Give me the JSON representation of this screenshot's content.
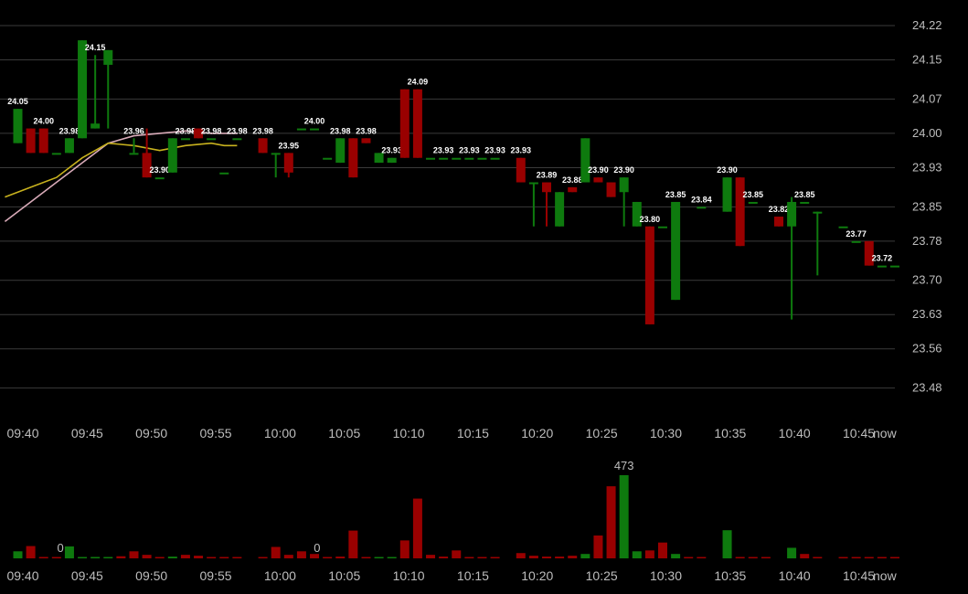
{
  "colors": {
    "background": "#000000",
    "grid": "#3a3a3a",
    "up": "#0e7a0e",
    "down": "#990000",
    "text": "#bdbdbd",
    "label": "#ffffff",
    "ma_fast": "#c8b21e",
    "ma_slow": "#d8aab8"
  },
  "chart_data": [
    {
      "type": "candlestick",
      "y_ticks": [
        "24.22",
        "24.15",
        "24.07",
        "24.00",
        "23.93",
        "23.85",
        "23.78",
        "23.70",
        "23.63",
        "23.56",
        "23.48"
      ],
      "ylim": [
        23.455,
        24.235
      ],
      "x_ticks": [
        "09:40",
        "09:45",
        "09:50",
        "09:55",
        "10:00",
        "10:05",
        "10:10",
        "10:15",
        "10:20",
        "10:25",
        "10:30",
        "10:35",
        "10:40",
        "10:45",
        "now"
      ],
      "grid": "horizontal",
      "candles": [
        {
          "t": 0,
          "o": 23.98,
          "h": 24.05,
          "l": 23.98,
          "c": 24.05,
          "label": "24.05"
        },
        {
          "t": 1,
          "o": 24.01,
          "h": 24.01,
          "l": 23.96,
          "c": 23.96
        },
        {
          "t": 2,
          "o": 24.01,
          "h": 24.01,
          "l": 23.96,
          "c": 23.96,
          "label": "24.00"
        },
        {
          "t": 3,
          "o": 23.96,
          "h": 23.96,
          "l": 23.96,
          "c": 23.96
        },
        {
          "t": 4,
          "o": 23.96,
          "h": 23.99,
          "l": 23.96,
          "c": 23.99,
          "label": "23.98"
        },
        {
          "t": 5,
          "o": 23.99,
          "h": 24.19,
          "l": 23.99,
          "c": 24.19
        },
        {
          "t": 6,
          "o": 24.01,
          "h": 24.16,
          "l": 24.01,
          "c": 24.02,
          "label": "24.15"
        },
        {
          "t": 7,
          "o": 24.14,
          "h": 24.17,
          "l": 24.01,
          "c": 24.17
        },
        {
          "t": 9,
          "o": 23.96,
          "h": 23.99,
          "l": 23.96,
          "c": 23.96,
          "label": "23.96"
        },
        {
          "t": 10,
          "o": 23.96,
          "h": 24.01,
          "l": 23.91,
          "c": 23.91
        },
        {
          "t": 11,
          "o": 23.91,
          "h": 23.91,
          "l": 23.91,
          "c": 23.91,
          "label": "23.90"
        },
        {
          "t": 12,
          "o": 23.92,
          "h": 23.99,
          "l": 23.92,
          "c": 23.99
        },
        {
          "t": 13,
          "o": 23.99,
          "h": 23.99,
          "l": 23.99,
          "c": 23.99,
          "label": "23.98"
        },
        {
          "t": 14,
          "o": 24.01,
          "h": 24.01,
          "l": 23.99,
          "c": 23.99
        },
        {
          "t": 15,
          "o": 23.99,
          "h": 23.99,
          "l": 23.99,
          "c": 23.99,
          "label": "23.98"
        },
        {
          "t": 16,
          "o": 23.92,
          "h": 23.92,
          "l": 23.92,
          "c": 23.92
        },
        {
          "t": 17,
          "o": 23.99,
          "h": 23.99,
          "l": 23.99,
          "c": 23.99,
          "label": "23.98"
        },
        {
          "t": 19,
          "o": 23.99,
          "h": 23.99,
          "l": 23.96,
          "c": 23.96,
          "label": "23.98"
        },
        {
          "t": 20,
          "o": 23.96,
          "h": 23.96,
          "l": 23.91,
          "c": 23.96
        },
        {
          "t": 21,
          "o": 23.96,
          "h": 23.96,
          "l": 23.91,
          "c": 23.92,
          "label": "23.95"
        },
        {
          "t": 22,
          "o": 24.01,
          "h": 24.01,
          "l": 24.01,
          "c": 24.01
        },
        {
          "t": 23,
          "o": 24.01,
          "h": 24.01,
          "l": 24.01,
          "c": 24.01,
          "label": "24.00"
        },
        {
          "t": 24,
          "o": 23.95,
          "h": 23.95,
          "l": 23.95,
          "c": 23.95
        },
        {
          "t": 25,
          "o": 23.94,
          "h": 23.99,
          "l": 23.94,
          "c": 23.99,
          "label": "23.98"
        },
        {
          "t": 26,
          "o": 23.99,
          "h": 23.99,
          "l": 23.91,
          "c": 23.91
        },
        {
          "t": 27,
          "o": 23.99,
          "h": 23.99,
          "l": 23.98,
          "c": 23.98,
          "label": "23.98"
        },
        {
          "t": 28,
          "o": 23.94,
          "h": 23.96,
          "l": 23.94,
          "c": 23.96
        },
        {
          "t": 29,
          "o": 23.94,
          "h": 23.95,
          "l": 23.94,
          "c": 23.95,
          "label": "23.93"
        },
        {
          "t": 30,
          "o": 24.09,
          "h": 24.09,
          "l": 23.95,
          "c": 23.95
        },
        {
          "t": 31,
          "o": 24.09,
          "h": 24.09,
          "l": 23.95,
          "c": 23.95,
          "label": "24.09"
        },
        {
          "t": 32,
          "o": 23.95,
          "h": 23.95,
          "l": 23.95,
          "c": 23.95
        },
        {
          "t": 33,
          "o": 23.95,
          "h": 23.95,
          "l": 23.95,
          "c": 23.95,
          "label": "23.93"
        },
        {
          "t": 34,
          "o": 23.95,
          "h": 23.95,
          "l": 23.95,
          "c": 23.95
        },
        {
          "t": 35,
          "o": 23.95,
          "h": 23.95,
          "l": 23.95,
          "c": 23.95,
          "label": "23.93"
        },
        {
          "t": 36,
          "o": 23.95,
          "h": 23.95,
          "l": 23.95,
          "c": 23.95
        },
        {
          "t": 37,
          "o": 23.95,
          "h": 23.95,
          "l": 23.95,
          "c": 23.95,
          "label": "23.93"
        },
        {
          "t": 39,
          "o": 23.95,
          "h": 23.95,
          "l": 23.9,
          "c": 23.9,
          "label": "23.93"
        },
        {
          "t": 40,
          "o": 23.9,
          "h": 23.9,
          "l": 23.81,
          "c": 23.9
        },
        {
          "t": 41,
          "o": 23.9,
          "h": 23.9,
          "l": 23.81,
          "c": 23.88,
          "label": "23.89"
        },
        {
          "t": 42,
          "o": 23.81,
          "h": 23.88,
          "l": 23.81,
          "c": 23.88
        },
        {
          "t": 43,
          "o": 23.89,
          "h": 23.89,
          "l": 23.88,
          "c": 23.88,
          "label": "23.88"
        },
        {
          "t": 44,
          "o": 23.9,
          "h": 23.99,
          "l": 23.9,
          "c": 23.99
        },
        {
          "t": 45,
          "o": 23.91,
          "h": 23.91,
          "l": 23.9,
          "c": 23.9,
          "label": "23.90"
        },
        {
          "t": 46,
          "o": 23.9,
          "h": 23.9,
          "l": 23.87,
          "c": 23.87
        },
        {
          "t": 47,
          "o": 23.88,
          "h": 23.91,
          "l": 23.81,
          "c": 23.91,
          "label": "23.90"
        },
        {
          "t": 48,
          "o": 23.81,
          "h": 23.86,
          "l": 23.81,
          "c": 23.86
        },
        {
          "t": 49,
          "o": 23.81,
          "h": 23.81,
          "l": 23.61,
          "c": 23.61,
          "label": "23.80"
        },
        {
          "t": 50,
          "o": 23.81,
          "h": 23.81,
          "l": 23.81,
          "c": 23.81
        },
        {
          "t": 51,
          "o": 23.66,
          "h": 23.86,
          "l": 23.66,
          "c": 23.86,
          "label": "23.85"
        },
        {
          "t": 53,
          "o": 23.85,
          "h": 23.85,
          "l": 23.85,
          "c": 23.85,
          "label": "23.84"
        },
        {
          "t": 55,
          "o": 23.84,
          "h": 23.91,
          "l": 23.84,
          "c": 23.91,
          "label": "23.90"
        },
        {
          "t": 56,
          "o": 23.91,
          "h": 23.91,
          "l": 23.77,
          "c": 23.77
        },
        {
          "t": 57,
          "o": 23.86,
          "h": 23.86,
          "l": 23.86,
          "c": 23.86,
          "label": "23.85"
        },
        {
          "t": 59,
          "o": 23.83,
          "h": 23.83,
          "l": 23.81,
          "c": 23.81,
          "label": "23.82"
        },
        {
          "t": 60,
          "o": 23.81,
          "h": 23.87,
          "l": 23.62,
          "c": 23.86
        },
        {
          "t": 61,
          "o": 23.86,
          "h": 23.86,
          "l": 23.86,
          "c": 23.86,
          "label": "23.85"
        },
        {
          "t": 62,
          "o": 23.84,
          "h": 23.84,
          "l": 23.71,
          "c": 23.84
        },
        {
          "t": 64,
          "o": 23.81,
          "h": 23.81,
          "l": 23.81,
          "c": 23.81
        },
        {
          "t": 65,
          "o": 23.78,
          "h": 23.78,
          "l": 23.78,
          "c": 23.78,
          "label": "23.77"
        },
        {
          "t": 66,
          "o": 23.78,
          "h": 23.78,
          "l": 23.73,
          "c": 23.73
        },
        {
          "t": 67,
          "o": 23.73,
          "h": 23.73,
          "l": 23.73,
          "c": 23.73,
          "label": "23.72"
        },
        {
          "t": 68,
          "o": 23.73,
          "h": 23.73,
          "l": 23.73,
          "c": 23.73
        }
      ],
      "ma_fast": [
        [
          -1,
          23.87
        ],
        [
          1,
          23.89
        ],
        [
          3,
          23.91
        ],
        [
          5,
          23.95
        ],
        [
          7,
          23.98
        ],
        [
          9,
          23.975
        ],
        [
          11,
          23.965
        ],
        [
          13,
          23.975
        ],
        [
          15,
          23.98
        ],
        [
          16,
          23.975
        ],
        [
          17,
          23.975
        ]
      ],
      "ma_slow": [
        [
          -1,
          23.82
        ],
        [
          1,
          23.86
        ],
        [
          3,
          23.9
        ],
        [
          5,
          23.94
        ],
        [
          7,
          23.98
        ],
        [
          9,
          23.995
        ],
        [
          11,
          24.0
        ],
        [
          13,
          24.005
        ],
        [
          15,
          24.0
        ],
        [
          17,
          24.0
        ]
      ]
    },
    {
      "type": "bar",
      "x_ticks": [
        "09:40",
        "09:45",
        "09:50",
        "09:55",
        "10:00",
        "10:05",
        "10:10",
        "10:15",
        "10:20",
        "10:25",
        "10:30",
        "10:35",
        "10:40",
        "10:45",
        "now"
      ],
      "ylim": [
        0,
        473
      ],
      "annotations": [
        {
          "t": 3.3,
          "v": 0,
          "label": "0"
        },
        {
          "t": 23.2,
          "v": 0,
          "label": "0"
        },
        {
          "t": 47,
          "v": 473,
          "label": "473"
        }
      ],
      "bars": [
        {
          "t": 0,
          "v": 40,
          "dir": "up"
        },
        {
          "t": 1,
          "v": 70,
          "dir": "down"
        },
        {
          "t": 2,
          "v": 8,
          "dir": "down"
        },
        {
          "t": 3,
          "v": 3,
          "dir": "down"
        },
        {
          "t": 4,
          "v": 68,
          "dir": "up"
        },
        {
          "t": 5,
          "v": 6,
          "dir": "up"
        },
        {
          "t": 6,
          "v": 8,
          "dir": "up"
        },
        {
          "t": 7,
          "v": 6,
          "dir": "up"
        },
        {
          "t": 8,
          "v": 12,
          "dir": "down"
        },
        {
          "t": 9,
          "v": 40,
          "dir": "down"
        },
        {
          "t": 10,
          "v": 20,
          "dir": "down"
        },
        {
          "t": 11,
          "v": 6,
          "dir": "down"
        },
        {
          "t": 12,
          "v": 10,
          "dir": "up"
        },
        {
          "t": 13,
          "v": 20,
          "dir": "down"
        },
        {
          "t": 14,
          "v": 15,
          "dir": "down"
        },
        {
          "t": 15,
          "v": 5,
          "dir": "down"
        },
        {
          "t": 16,
          "v": 3,
          "dir": "down"
        },
        {
          "t": 17,
          "v": 3,
          "dir": "down"
        },
        {
          "t": 19,
          "v": 3,
          "dir": "down"
        },
        {
          "t": 20,
          "v": 65,
          "dir": "down"
        },
        {
          "t": 21,
          "v": 20,
          "dir": "down"
        },
        {
          "t": 22,
          "v": 40,
          "dir": "down"
        },
        {
          "t": 23,
          "v": 25,
          "dir": "down"
        },
        {
          "t": 24,
          "v": 5,
          "dir": "down"
        },
        {
          "t": 25,
          "v": 10,
          "dir": "down"
        },
        {
          "t": 26,
          "v": 158,
          "dir": "down"
        },
        {
          "t": 27,
          "v": 5,
          "dir": "down"
        },
        {
          "t": 28,
          "v": 5,
          "dir": "up"
        },
        {
          "t": 29,
          "v": 5,
          "dir": "up"
        },
        {
          "t": 30,
          "v": 102,
          "dir": "down"
        },
        {
          "t": 31,
          "v": 340,
          "dir": "down"
        },
        {
          "t": 32,
          "v": 20,
          "dir": "down"
        },
        {
          "t": 33,
          "v": 10,
          "dir": "down"
        },
        {
          "t": 34,
          "v": 45,
          "dir": "down"
        },
        {
          "t": 35,
          "v": 5,
          "dir": "down"
        },
        {
          "t": 36,
          "v": 5,
          "dir": "down"
        },
        {
          "t": 37,
          "v": 5,
          "dir": "down"
        },
        {
          "t": 39,
          "v": 30,
          "dir": "down"
        },
        {
          "t": 40,
          "v": 15,
          "dir": "down"
        },
        {
          "t": 41,
          "v": 10,
          "dir": "down"
        },
        {
          "t": 42,
          "v": 10,
          "dir": "down"
        },
        {
          "t": 43,
          "v": 15,
          "dir": "down"
        },
        {
          "t": 44,
          "v": 25,
          "dir": "up"
        },
        {
          "t": 45,
          "v": 130,
          "dir": "down"
        },
        {
          "t": 46,
          "v": 410,
          "dir": "down"
        },
        {
          "t": 47,
          "v": 473,
          "dir": "up"
        },
        {
          "t": 48,
          "v": 40,
          "dir": "up"
        },
        {
          "t": 49,
          "v": 45,
          "dir": "down"
        },
        {
          "t": 50,
          "v": 90,
          "dir": "down"
        },
        {
          "t": 51,
          "v": 25,
          "dir": "up"
        },
        {
          "t": 52,
          "v": 4,
          "dir": "down"
        },
        {
          "t": 53,
          "v": 4,
          "dir": "down"
        },
        {
          "t": 55,
          "v": 160,
          "dir": "up"
        },
        {
          "t": 56,
          "v": 8,
          "dir": "down"
        },
        {
          "t": 57,
          "v": 4,
          "dir": "down"
        },
        {
          "t": 58,
          "v": 4,
          "dir": "down"
        },
        {
          "t": 60,
          "v": 60,
          "dir": "up"
        },
        {
          "t": 61,
          "v": 25,
          "dir": "down"
        },
        {
          "t": 62,
          "v": 8,
          "dir": "down"
        },
        {
          "t": 64,
          "v": 4,
          "dir": "down"
        },
        {
          "t": 65,
          "v": 4,
          "dir": "down"
        },
        {
          "t": 66,
          "v": 4,
          "dir": "down"
        },
        {
          "t": 67,
          "v": 4,
          "dir": "down"
        },
        {
          "t": 68,
          "v": 4,
          "dir": "down"
        }
      ]
    }
  ]
}
